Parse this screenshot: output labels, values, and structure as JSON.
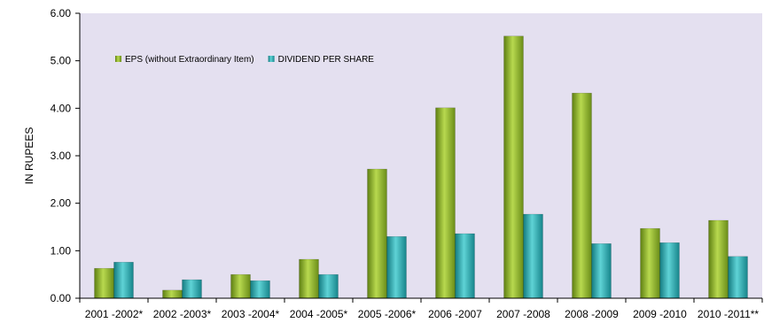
{
  "chart_data": {
    "type": "bar",
    "ylabel": "IN RUPEES",
    "xlabel": "",
    "ylim": [
      0,
      6
    ],
    "yticks": [
      "0.00",
      "1.00",
      "2.00",
      "3.00",
      "4.00",
      "5.00",
      "6.00"
    ],
    "categories": [
      "2001 -2002*",
      "2002 -2003*",
      "2003 -2004*",
      "2004 -2005*",
      "2005 -2006*",
      "2006 -2007",
      "2007 -2008",
      "2008 -2009",
      "2009 -2010",
      "2010 -2011**"
    ],
    "series": [
      {
        "name": "EPS (without Extraordinary Item)",
        "color": "#8db52a",
        "values": [
          0.63,
          0.17,
          0.5,
          0.82,
          2.72,
          4.01,
          5.52,
          4.32,
          1.47,
          1.64
        ]
      },
      {
        "name": "DIVIDEND PER SHARE",
        "color": "#2aa8ad",
        "values": [
          0.76,
          0.39,
          0.37,
          0.5,
          1.3,
          1.36,
          1.77,
          1.15,
          1.17,
          0.88
        ]
      }
    ],
    "legend_position": "top-left",
    "background": "#e4e0f0",
    "grid": false
  }
}
